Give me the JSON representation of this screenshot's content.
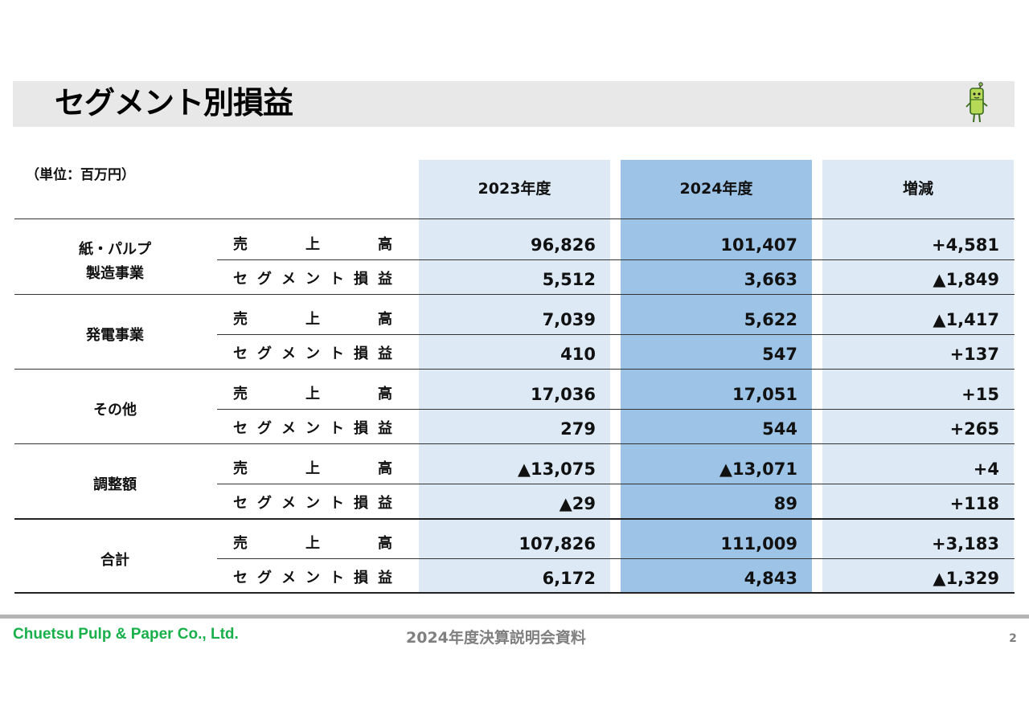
{
  "title": "セグメント別損益",
  "unit_label": "（単位：百万円）",
  "columns": {
    "col_2023": "2023年度",
    "col_2024": "2024年度",
    "col_diff": "増減"
  },
  "row_labels": {
    "sales": [
      "売",
      "上",
      "高"
    ],
    "profit": [
      "セ",
      "グ",
      "メ",
      "ン",
      "ト",
      "損",
      "益"
    ]
  },
  "segments": [
    {
      "name": [
        "紙・パルプ",
        "製造事業"
      ],
      "sales": {
        "y2023": "96,826",
        "y2024": "101,407",
        "diff": "+4,581"
      },
      "profit": {
        "y2023": "5,512",
        "y2024": "3,663",
        "diff": "▲1,849"
      }
    },
    {
      "name": [
        "発電事業"
      ],
      "sales": {
        "y2023": "7,039",
        "y2024": "5,622",
        "diff": "▲1,417"
      },
      "profit": {
        "y2023": "410",
        "y2024": "547",
        "diff": "+137"
      }
    },
    {
      "name": [
        "その他"
      ],
      "sales": {
        "y2023": "17,036",
        "y2024": "17,051",
        "diff": "+15"
      },
      "profit": {
        "y2023": "279",
        "y2024": "544",
        "diff": "+265"
      }
    },
    {
      "name": [
        "調整額"
      ],
      "sales": {
        "y2023": "▲13,075",
        "y2024": "▲13,071",
        "diff": "+4"
      },
      "profit": {
        "y2023": "▲29",
        "y2024": "89",
        "diff": "+118"
      }
    },
    {
      "name": [
        "合計"
      ],
      "sales": {
        "y2023": "107,826",
        "y2024": "111,009",
        "diff": "+3,183"
      },
      "profit": {
        "y2023": "6,172",
        "y2024": "4,843",
        "diff": "▲1,329"
      }
    }
  ],
  "footer": {
    "company": "Chuetsu Pulp & Paper Co., Ltd.",
    "document": "2024年度決算説明会資料",
    "page": "2"
  },
  "colors": {
    "title_bar": "#e8e8e8",
    "col_light": "#ddeaf6",
    "col_highlight": "#9dc3e6",
    "company_green": "#18b04a",
    "footer_gray": "#7f7f7f",
    "mascot": "bamboo-mascot-icon"
  }
}
